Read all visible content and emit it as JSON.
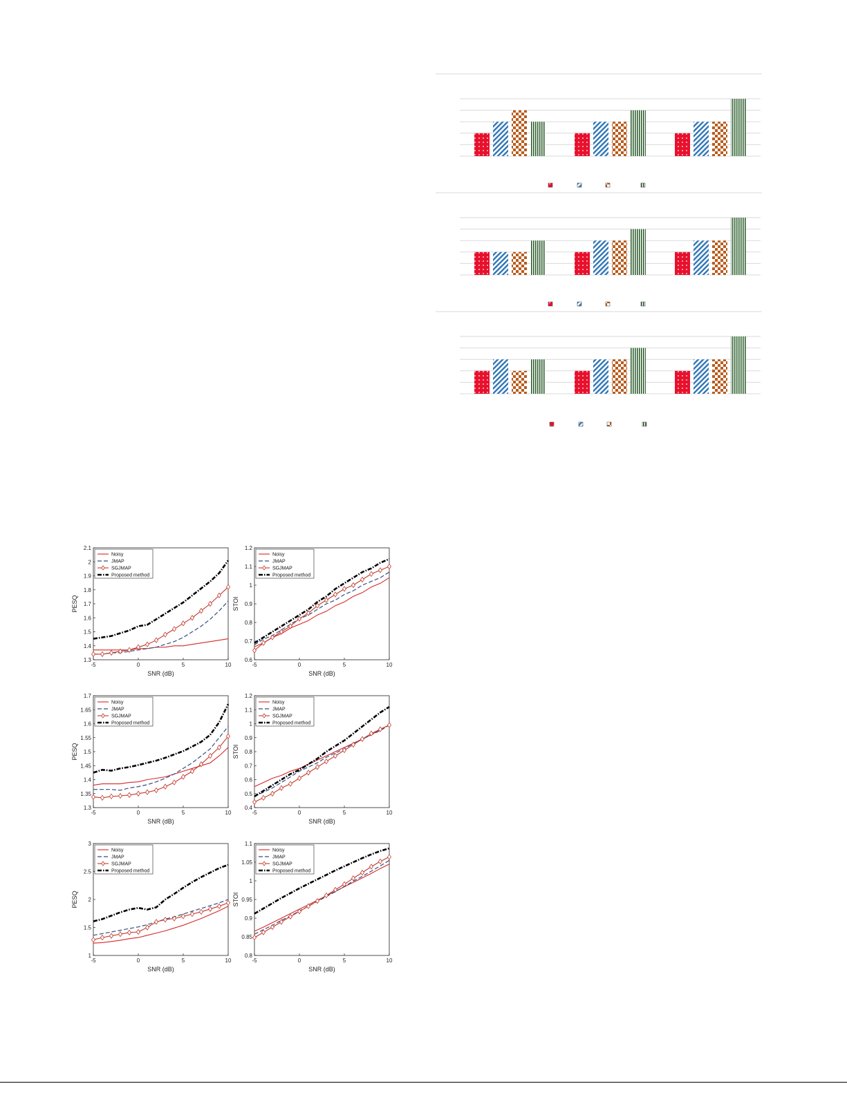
{
  "colors": {
    "noisy": "#d62728",
    "jmap": "#2f4f7f",
    "sgjmap": "#c0392b",
    "proposed": "#000000",
    "bar_red": "#e8112d",
    "bar_blue": "#2e75b6",
    "bar_orange": "#b85c1e",
    "bar_green": "#2e5e2e"
  },
  "bar_legend_icons": [
    "dot-pattern-icon",
    "diagonal-hatch-icon",
    "checker-pattern-icon",
    "vertical-stripe-icon"
  ],
  "chart_data": [
    {
      "type": "bar",
      "panel": 1,
      "groups": 3,
      "series": [
        {
          "pattern": "dots",
          "values": [
            2,
            2,
            2
          ]
        },
        {
          "pattern": "diagonal",
          "values": [
            3,
            3,
            3
          ]
        },
        {
          "pattern": "checker",
          "values": [
            4,
            3,
            3
          ]
        },
        {
          "pattern": "vertical",
          "values": [
            3,
            4,
            5
          ]
        }
      ],
      "ylim": [
        0,
        5
      ],
      "grid": true
    },
    {
      "type": "bar",
      "panel": 2,
      "groups": 3,
      "series": [
        {
          "pattern": "dots",
          "values": [
            2,
            2,
            2
          ]
        },
        {
          "pattern": "diagonal",
          "values": [
            2,
            3,
            3
          ]
        },
        {
          "pattern": "checker",
          "values": [
            2,
            3,
            3
          ]
        },
        {
          "pattern": "vertical",
          "values": [
            3,
            4,
            5
          ]
        }
      ],
      "ylim": [
        0,
        5
      ],
      "grid": true
    },
    {
      "type": "bar",
      "panel": 3,
      "groups": 3,
      "series": [
        {
          "pattern": "dots",
          "values": [
            2,
            2,
            2
          ]
        },
        {
          "pattern": "diagonal",
          "values": [
            3,
            3,
            3
          ]
        },
        {
          "pattern": "checker",
          "values": [
            2,
            3,
            3
          ]
        },
        {
          "pattern": "vertical",
          "values": [
            3,
            4,
            5
          ]
        }
      ],
      "ylim": [
        0,
        5
      ],
      "grid": true
    },
    {
      "type": "line",
      "xlabel": "SNR (dB)",
      "ylabel": "PESQ",
      "xlim": [
        -5,
        10
      ],
      "ylim": [
        1.3,
        2.1
      ],
      "xticks": [
        "-5",
        "0",
        "5",
        "10"
      ],
      "yticks": [
        "1.3",
        "1.4",
        "1.5",
        "1.6",
        "1.7",
        "1.8",
        "1.9",
        "2",
        "2.1"
      ],
      "x": [
        -5,
        -4,
        -3,
        -2,
        -1,
        0,
        1,
        2,
        3,
        4,
        5,
        6,
        7,
        8,
        9,
        10
      ],
      "series": [
        {
          "name": "Noisy",
          "values": [
            1.37,
            1.37,
            1.37,
            1.37,
            1.37,
            1.38,
            1.38,
            1.39,
            1.39,
            1.4,
            1.4,
            1.41,
            1.42,
            1.43,
            1.44,
            1.45
          ]
        },
        {
          "name": "JMAP",
          "values": [
            1.34,
            1.34,
            1.35,
            1.35,
            1.36,
            1.37,
            1.38,
            1.39,
            1.41,
            1.43,
            1.46,
            1.5,
            1.54,
            1.59,
            1.65,
            1.72
          ]
        },
        {
          "name": "SGJMAP",
          "values": [
            1.34,
            1.34,
            1.35,
            1.36,
            1.37,
            1.39,
            1.41,
            1.44,
            1.48,
            1.52,
            1.56,
            1.6,
            1.65,
            1.7,
            1.76,
            1.82
          ]
        },
        {
          "name": "Proposed method",
          "values": [
            1.45,
            1.46,
            1.47,
            1.49,
            1.51,
            1.54,
            1.55,
            1.59,
            1.63,
            1.67,
            1.71,
            1.76,
            1.81,
            1.86,
            1.92,
            2.01
          ]
        }
      ],
      "legend": "top-left"
    },
    {
      "type": "line",
      "xlabel": "SNR (dB)",
      "ylabel": "STOI",
      "xlim": [
        -5,
        10
      ],
      "ylim": [
        0.6,
        1.2
      ],
      "xticks": [
        "-5",
        "0",
        "5",
        "10"
      ],
      "yticks": [
        "0.6",
        "0.7",
        "0.8",
        "0.9",
        "1",
        "1.1",
        "1.2"
      ],
      "x": [
        -5,
        -4,
        -3,
        -2,
        -1,
        0,
        1,
        2,
        3,
        4,
        5,
        6,
        7,
        8,
        9,
        10
      ],
      "series": [
        {
          "name": "Noisy",
          "values": [
            0.67,
            0.69,
            0.72,
            0.74,
            0.77,
            0.79,
            0.81,
            0.84,
            0.86,
            0.89,
            0.91,
            0.94,
            0.96,
            0.99,
            1.01,
            1.04
          ]
        },
        {
          "name": "JMAP",
          "values": [
            0.68,
            0.71,
            0.73,
            0.76,
            0.79,
            0.82,
            0.84,
            0.87,
            0.9,
            0.92,
            0.95,
            0.97,
            1.0,
            1.02,
            1.04,
            1.07
          ]
        },
        {
          "name": "SGJMAP",
          "values": [
            0.65,
            0.69,
            0.72,
            0.75,
            0.78,
            0.82,
            0.85,
            0.89,
            0.92,
            0.95,
            0.98,
            1.0,
            1.03,
            1.06,
            1.08,
            1.1
          ]
        },
        {
          "name": "Proposed method",
          "values": [
            0.69,
            0.72,
            0.75,
            0.78,
            0.81,
            0.84,
            0.87,
            0.91,
            0.94,
            0.98,
            1.01,
            1.04,
            1.07,
            1.09,
            1.12,
            1.14
          ]
        }
      ],
      "legend": "top-left"
    },
    {
      "type": "line",
      "xlabel": "SNR (dB)",
      "ylabel": "PESQ",
      "xlim": [
        -5,
        10
      ],
      "ylim": [
        1.3,
        1.7
      ],
      "xticks": [
        "-5",
        "0",
        "5",
        "10"
      ],
      "yticks": [
        "1.3",
        "1.35",
        "1.4",
        "1.45",
        "1.5",
        "1.55",
        "1.6",
        "1.65",
        "1.7"
      ],
      "x": [
        -5,
        -4,
        -3,
        -2,
        -1,
        0,
        1,
        2,
        3,
        4,
        5,
        6,
        7,
        8,
        9,
        10
      ],
      "series": [
        {
          "name": "Noisy",
          "values": [
            1.38,
            1.385,
            1.385,
            1.385,
            1.39,
            1.392,
            1.4,
            1.405,
            1.41,
            1.42,
            1.43,
            1.44,
            1.45,
            1.46,
            1.485,
            1.515
          ]
        },
        {
          "name": "JMAP",
          "values": [
            1.365,
            1.365,
            1.365,
            1.362,
            1.37,
            1.375,
            1.382,
            1.392,
            1.405,
            1.42,
            1.44,
            1.46,
            1.485,
            1.51,
            1.55,
            1.59
          ]
        },
        {
          "name": "SGJMAP",
          "values": [
            1.338,
            1.335,
            1.34,
            1.342,
            1.345,
            1.35,
            1.355,
            1.362,
            1.375,
            1.39,
            1.41,
            1.43,
            1.455,
            1.485,
            1.515,
            1.555
          ]
        },
        {
          "name": "Proposed method",
          "values": [
            1.425,
            1.435,
            1.432,
            1.44,
            1.445,
            1.452,
            1.46,
            1.468,
            1.478,
            1.49,
            1.502,
            1.518,
            1.535,
            1.56,
            1.605,
            1.67
          ]
        }
      ],
      "legend": "top-left"
    },
    {
      "type": "line",
      "xlabel": "SNR (dB)",
      "ylabel": "STOI",
      "xlim": [
        -5,
        10
      ],
      "ylim": [
        0.4,
        1.2
      ],
      "xticks": [
        "-5",
        "0",
        "5",
        "10"
      ],
      "yticks": [
        "0.4",
        "0.5",
        "0.6",
        "0.7",
        "0.8",
        "0.9",
        "1",
        "1.1",
        "1.2"
      ],
      "x": [
        -5,
        -4,
        -3,
        -2,
        -1,
        0,
        1,
        2,
        3,
        4,
        5,
        6,
        7,
        8,
        9,
        10
      ],
      "series": [
        {
          "name": "Noisy",
          "values": [
            0.55,
            0.58,
            0.61,
            0.63,
            0.66,
            0.68,
            0.71,
            0.74,
            0.77,
            0.8,
            0.83,
            0.86,
            0.89,
            0.92,
            0.96,
            0.99
          ]
        },
        {
          "name": "JMAP",
          "values": [
            0.48,
            0.51,
            0.54,
            0.58,
            0.62,
            0.66,
            0.69,
            0.72,
            0.76,
            0.79,
            0.82,
            0.86,
            0.89,
            0.92,
            0.95,
            0.99
          ]
        },
        {
          "name": "SGJMAP",
          "values": [
            0.44,
            0.47,
            0.5,
            0.54,
            0.57,
            0.61,
            0.65,
            0.69,
            0.73,
            0.77,
            0.81,
            0.85,
            0.89,
            0.93,
            0.96,
            0.99
          ]
        },
        {
          "name": "Proposed method",
          "values": [
            0.48,
            0.52,
            0.56,
            0.6,
            0.64,
            0.67,
            0.71,
            0.75,
            0.8,
            0.84,
            0.88,
            0.93,
            0.98,
            1.03,
            1.08,
            1.12
          ]
        }
      ],
      "legend": "top-left"
    },
    {
      "type": "line",
      "xlabel": "SNR (dB)",
      "ylabel": "PESQ",
      "xlim": [
        -5,
        10
      ],
      "ylim": [
        1,
        3
      ],
      "xticks": [
        "-5",
        "0",
        "5",
        "10"
      ],
      "yticks": [
        "1",
        "1.5",
        "2",
        "2.5",
        "3"
      ],
      "x": [
        -5,
        -4,
        -3,
        -2,
        -1,
        0,
        1,
        2,
        3,
        4,
        5,
        6,
        7,
        8,
        9,
        10
      ],
      "series": [
        {
          "name": "Noisy",
          "values": [
            1.22,
            1.23,
            1.25,
            1.27,
            1.3,
            1.32,
            1.36,
            1.4,
            1.44,
            1.49,
            1.54,
            1.6,
            1.66,
            1.73,
            1.8,
            1.88
          ]
        },
        {
          "name": "JMAP",
          "values": [
            1.36,
            1.39,
            1.42,
            1.45,
            1.48,
            1.51,
            1.55,
            1.6,
            1.65,
            1.69,
            1.74,
            1.79,
            1.84,
            1.89,
            1.94,
            2.0
          ]
        },
        {
          "name": "SGJMAP",
          "values": [
            1.28,
            1.32,
            1.35,
            1.38,
            1.41,
            1.42,
            1.5,
            1.6,
            1.64,
            1.66,
            1.7,
            1.74,
            1.78,
            1.83,
            1.88,
            1.94
          ]
        },
        {
          "name": "Proposed method",
          "values": [
            1.61,
            1.65,
            1.71,
            1.77,
            1.82,
            1.85,
            1.82,
            1.86,
            2.0,
            2.1,
            2.21,
            2.31,
            2.4,
            2.48,
            2.56,
            2.62
          ]
        }
      ],
      "legend": "top-left"
    },
    {
      "type": "line",
      "xlabel": "SNR (dB)",
      "ylabel": "STOI",
      "xlim": [
        -5,
        10
      ],
      "ylim": [
        0.8,
        1.1
      ],
      "xticks": [
        "-5",
        "0",
        "5",
        "10"
      ],
      "yticks": [
        "0.8",
        "0.85",
        "0.9",
        "0.95",
        "1",
        "1.05",
        "1.1"
      ],
      "x": [
        -5,
        -4,
        -3,
        -2,
        -1,
        0,
        1,
        2,
        3,
        4,
        5,
        6,
        7,
        8,
        9,
        10
      ],
      "series": [
        {
          "name": "Noisy",
          "values": [
            0.865,
            0.876,
            0.888,
            0.9,
            0.912,
            0.924,
            0.936,
            0.948,
            0.96,
            0.972,
            0.984,
            0.996,
            1.008,
            1.02,
            1.033,
            1.045
          ]
        },
        {
          "name": "JMAP",
          "values": [
            0.857,
            0.869,
            0.881,
            0.894,
            0.906,
            0.919,
            0.932,
            0.945,
            0.958,
            0.971,
            0.985,
            0.999,
            1.012,
            1.026,
            1.04,
            1.055
          ]
        },
        {
          "name": "SGJMAP",
          "values": [
            0.848,
            0.862,
            0.876,
            0.89,
            0.904,
            0.918,
            0.932,
            0.946,
            0.961,
            0.976,
            0.991,
            1.007,
            1.022,
            1.038,
            1.052,
            1.064
          ]
        },
        {
          "name": "Proposed method",
          "values": [
            0.912,
            0.926,
            0.94,
            0.954,
            0.967,
            0.98,
            0.992,
            1.004,
            1.016,
            1.028,
            1.039,
            1.05,
            1.061,
            1.071,
            1.08,
            1.087
          ]
        }
      ],
      "legend": "top-left"
    }
  ]
}
